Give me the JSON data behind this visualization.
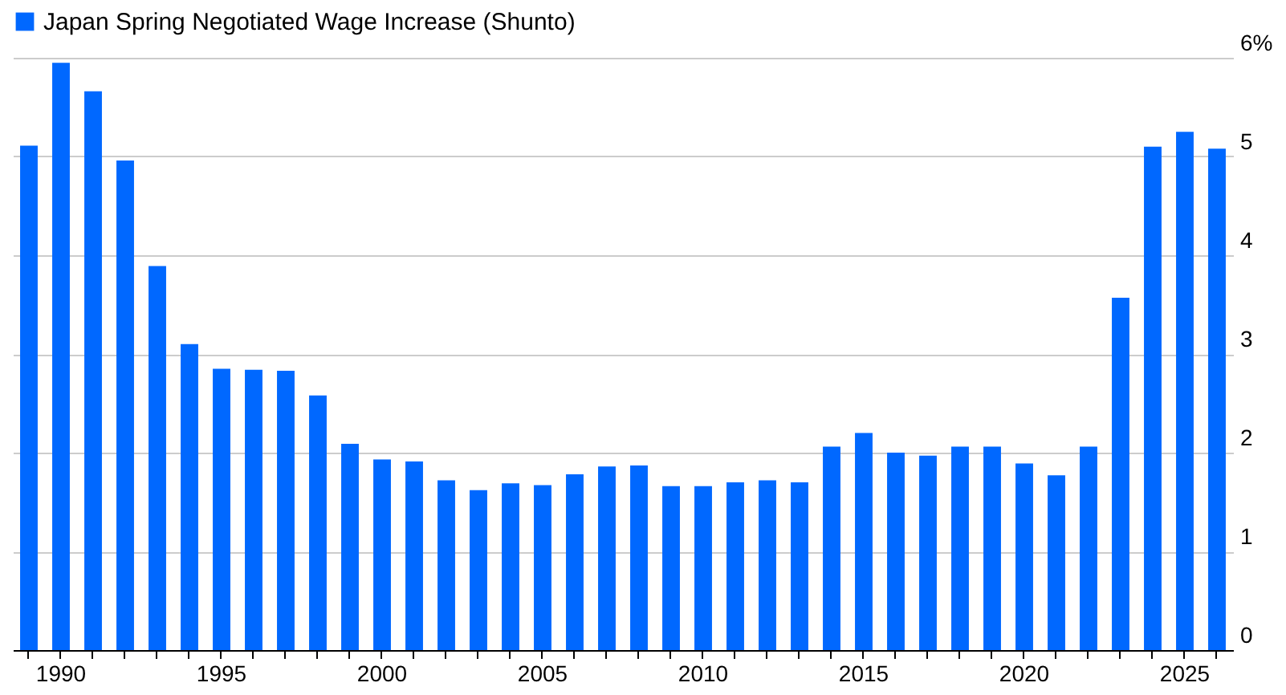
{
  "chart_data": {
    "type": "bar",
    "categories": [
      null,
      "1990",
      null,
      null,
      null,
      null,
      "1995",
      null,
      null,
      null,
      null,
      "2000",
      null,
      null,
      null,
      null,
      "2005",
      null,
      null,
      null,
      null,
      "2010",
      null,
      null,
      null,
      null,
      "2015",
      null,
      null,
      null,
      null,
      "2020",
      null,
      null,
      null,
      null,
      "2025",
      null
    ],
    "series": [
      {
        "name": "Japan Spring Negotiated Wage Increase (Shunto)",
        "color": "#0068ff",
        "values": [
          5.11,
          5.95,
          5.66,
          4.96,
          3.89,
          3.1,
          2.85,
          2.84,
          2.83,
          2.58,
          2.09,
          1.93,
          1.91,
          1.72,
          1.62,
          1.69,
          1.67,
          1.78,
          1.86,
          1.87,
          1.66,
          1.66,
          1.7,
          1.72,
          1.7,
          2.06,
          2.2,
          2.0,
          1.97,
          2.06,
          2.06,
          1.89,
          1.77,
          2.06,
          3.57,
          5.1,
          5.25,
          5.08
        ]
      }
    ],
    "ylim": [
      0,
      6
    ],
    "yticks": [
      0,
      1,
      2,
      3,
      4,
      5,
      {
        "value": 6,
        "label": "6%"
      }
    ],
    "grid": "y",
    "legend": "top left"
  }
}
